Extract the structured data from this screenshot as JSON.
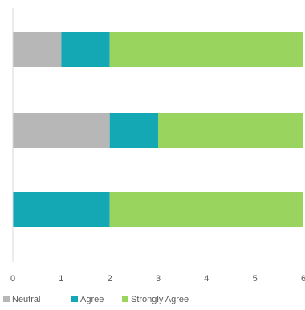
{
  "chart_data": {
    "type": "bar",
    "orientation": "horizontal",
    "stacked": true,
    "categories": [
      "",
      "",
      ""
    ],
    "series": [
      {
        "name": "Neutral",
        "color": "#b7b7b7",
        "values": [
          1,
          2,
          0
        ]
      },
      {
        "name": "Agree",
        "color": "#14a8b5",
        "values": [
          1,
          1,
          2
        ]
      },
      {
        "name": "Strongly Agree",
        "color": "#99d45e",
        "values": [
          4,
          3,
          4
        ]
      }
    ],
    "xlim": [
      0,
      6
    ],
    "xticks": [
      "0",
      "1",
      "2",
      "3",
      "4",
      "5",
      "6"
    ],
    "grid": false,
    "legend_position": "bottom-left",
    "title": "",
    "xlabel": "",
    "ylabel": ""
  }
}
